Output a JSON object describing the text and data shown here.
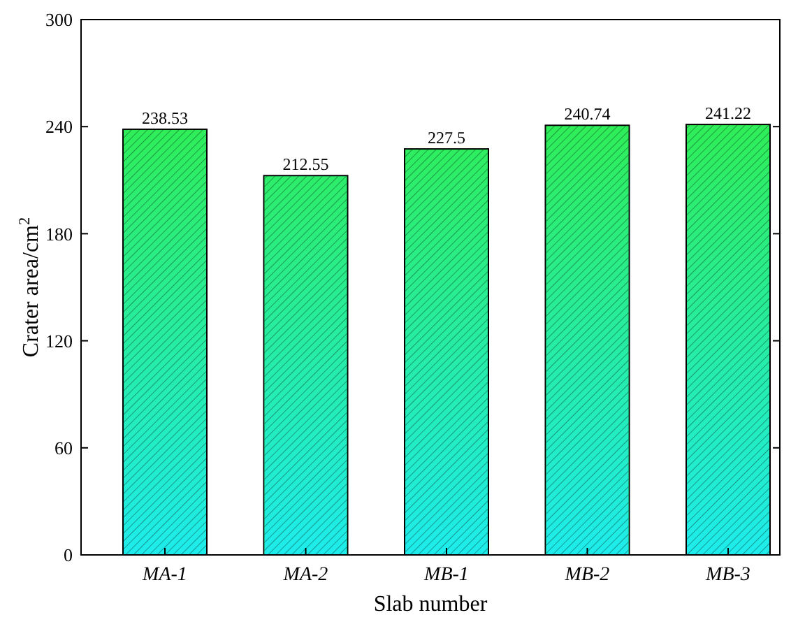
{
  "chart_data": {
    "type": "bar",
    "xlabel": "Slab number",
    "ylabel": "Crater area/cm$^{2}$",
    "categories": [
      "MA-1",
      "MA-2",
      "MB-1",
      "MB-2",
      "MB-3"
    ],
    "values": [
      238.53,
      212.55,
      227.5,
      240.74,
      241.22
    ],
    "color": "#33ee33",
    "ylim": [
      0,
      300
    ],
    "yticks": [
      0,
      60,
      120,
      180,
      240,
      300
    ],
    "data_labels": true
  }
}
